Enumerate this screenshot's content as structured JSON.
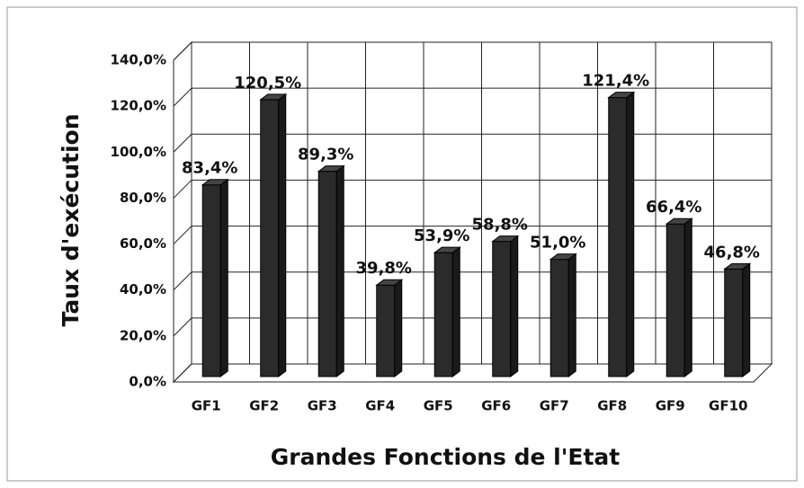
{
  "chart_data": {
    "type": "bar",
    "x_label": "Grandes Fonctions de l'Etat",
    "y_label": "Taux d'exécution",
    "categories": [
      "GF1",
      "GF2",
      "GF3",
      "GF4",
      "GF5",
      "GF6",
      "GF7",
      "GF8",
      "GF9",
      "GF10"
    ],
    "values": [
      83.4,
      120.5,
      89.3,
      39.8,
      53.9,
      58.8,
      51.0,
      121.4,
      66.4,
      46.8
    ],
    "value_labels": [
      "83,4%",
      "120,5%",
      "89,3%",
      "39,8%",
      "53,9%",
      "58,8%",
      "51,0%",
      "121,4%",
      "66,4%",
      "46,8%"
    ],
    "color": "#2b2b2b",
    "ylim": [
      0,
      140
    ],
    "yticks": [
      {
        "value": 0,
        "label": "0,0%"
      },
      {
        "value": 20,
        "label": "20,0%"
      },
      {
        "value": 40,
        "label": "40,0%"
      },
      {
        "value": 60,
        "label": "60,0%"
      },
      {
        "value": 80,
        "label": "80,0%"
      },
      {
        "value": 100,
        "label": "100,0%"
      },
      {
        "value": 120,
        "label": "120,0%"
      },
      {
        "value": 140,
        "label": "140,0%"
      }
    ],
    "grid": true
  }
}
